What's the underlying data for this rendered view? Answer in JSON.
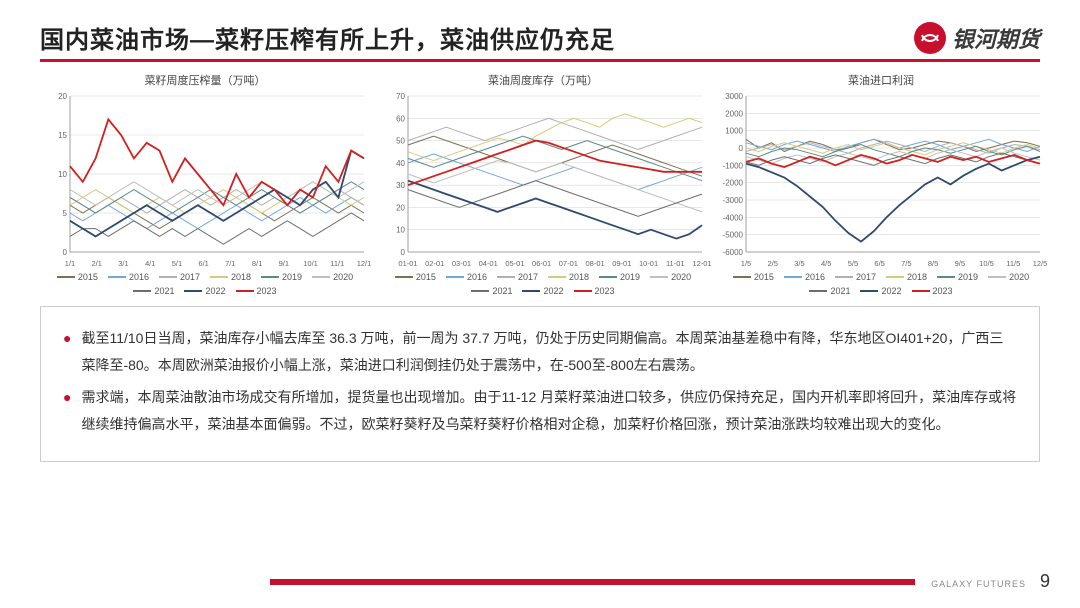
{
  "header": {
    "title": "国内菜油市场—菜籽压榨有所上升，菜油供应仍充足",
    "logo_text": "银河期货"
  },
  "colors": {
    "accent": "#c8102e",
    "y2015": "#7f7053",
    "y2016": "#6fa8dc",
    "y2017": "#b0b0b0",
    "y2018": "#d9c97a",
    "y2019": "#5a8a8a",
    "y2020": "#bfbfbf",
    "y2021": "#6e6e6e",
    "y2022": "#2f4a6f",
    "y2023": "#d21f1f",
    "grid": "#d0d0d0",
    "bg": "#ffffff"
  },
  "charts": [
    {
      "title": "菜籽周度压榨量（万吨）",
      "ylim": [
        0,
        20
      ],
      "ytick_step": 5,
      "xticks": [
        "1/1",
        "2/1",
        "3/1",
        "4/1",
        "5/1",
        "6/1",
        "7/1",
        "8/1",
        "9/1",
        "10/1",
        "11/1",
        "12/1"
      ],
      "label_fontsize": 8,
      "series": {
        "2015": [
          6,
          5,
          6,
          7,
          6,
          5,
          4,
          3,
          4,
          5,
          6,
          5,
          4,
          5,
          6,
          5,
          4,
          5,
          6,
          7,
          6,
          5,
          6,
          5
        ],
        "2016": [
          5,
          4,
          5,
          6,
          5,
          4,
          3,
          4,
          5,
          4,
          3,
          4,
          5,
          6,
          5,
          4,
          5,
          6,
          7,
          6,
          5,
          6,
          7,
          6
        ],
        "2017": [
          7,
          6,
          5,
          6,
          7,
          6,
          5,
          6,
          7,
          8,
          7,
          6,
          7,
          8,
          7,
          6,
          7,
          6,
          5,
          6,
          7,
          8,
          7,
          6
        ],
        "2018": [
          6,
          7,
          8,
          7,
          6,
          5,
          6,
          7,
          6,
          5,
          6,
          7,
          8,
          7,
          6,
          5,
          6,
          7,
          8,
          9,
          8,
          7,
          6,
          7
        ],
        "2019": [
          7,
          6,
          5,
          6,
          7,
          8,
          7,
          6,
          5,
          6,
          7,
          8,
          7,
          6,
          7,
          8,
          7,
          6,
          5,
          6,
          7,
          8,
          9,
          8
        ],
        "2020": [
          8,
          7,
          6,
          7,
          8,
          9,
          8,
          7,
          6,
          7,
          8,
          7,
          6,
          7,
          8,
          9,
          8,
          7,
          8,
          9,
          8,
          7,
          8,
          9
        ],
        "2021": [
          2,
          3,
          3,
          2,
          3,
          4,
          3,
          2,
          3,
          2,
          3,
          2,
          1,
          2,
          3,
          2,
          3,
          4,
          3,
          2,
          3,
          4,
          5,
          4
        ],
        "2022": [
          4,
          3,
          2,
          3,
          4,
          5,
          6,
          5,
          4,
          5,
          6,
          5,
          4,
          5,
          6,
          7,
          8,
          7,
          6,
          8,
          9,
          7,
          13,
          12
        ],
        "2023": [
          11,
          9,
          12,
          17,
          15,
          12,
          14,
          13,
          9,
          12,
          10,
          8,
          6,
          10,
          7,
          9,
          8,
          6,
          8,
          7,
          11,
          9,
          13,
          12
        ]
      }
    },
    {
      "title": "菜油周度库存（万吨）",
      "ylim": [
        0,
        70
      ],
      "ytick_step": 10,
      "xticks": [
        "01-01",
        "02-01",
        "03-01",
        "04-01",
        "05-01",
        "06-01",
        "07-01",
        "08-01",
        "09-01",
        "10-01",
        "11-01",
        "12-01"
      ],
      "label_fontsize": 8,
      "series": {
        "2015": [
          48,
          50,
          52,
          50,
          48,
          46,
          44,
          42,
          40,
          38,
          36,
          38,
          40,
          42,
          44,
          46,
          48,
          46,
          44,
          42,
          40,
          38,
          36,
          34
        ],
        "2016": [
          40,
          42,
          44,
          42,
          40,
          38,
          36,
          34,
          32,
          30,
          32,
          34,
          36,
          38,
          36,
          34,
          32,
          30,
          28,
          30,
          32,
          34,
          36,
          38
        ],
        "2017": [
          50,
          52,
          54,
          56,
          54,
          52,
          50,
          52,
          54,
          56,
          58,
          60,
          58,
          56,
          54,
          52,
          50,
          48,
          46,
          48,
          50,
          52,
          54,
          56
        ],
        "2018": [
          45,
          43,
          41,
          43,
          45,
          47,
          49,
          51,
          50,
          48,
          52,
          55,
          58,
          60,
          58,
          56,
          60,
          62,
          60,
          58,
          56,
          58,
          60,
          58
        ],
        "2019": [
          42,
          40,
          38,
          40,
          42,
          44,
          46,
          48,
          50,
          52,
          50,
          48,
          46,
          48,
          50,
          48,
          46,
          44,
          42,
          40,
          38,
          36,
          34,
          32
        ],
        "2020": [
          35,
          33,
          31,
          33,
          35,
          37,
          39,
          41,
          40,
          38,
          36,
          38,
          40,
          38,
          36,
          34,
          32,
          30,
          28,
          26,
          24,
          22,
          20,
          18
        ],
        "2021": [
          28,
          26,
          24,
          22,
          20,
          22,
          24,
          26,
          28,
          30,
          32,
          30,
          28,
          26,
          24,
          22,
          20,
          18,
          16,
          18,
          20,
          22,
          24,
          26
        ],
        "2022": [
          32,
          30,
          28,
          26,
          24,
          22,
          20,
          18,
          20,
          22,
          24,
          22,
          20,
          18,
          16,
          14,
          12,
          10,
          8,
          10,
          8,
          6,
          8,
          12
        ],
        "2023": [
          30,
          32,
          34,
          36,
          38,
          40,
          42,
          44,
          46,
          48,
          50,
          49,
          47,
          45,
          43,
          41,
          40,
          39,
          38,
          37,
          36,
          36,
          36,
          36
        ]
      }
    },
    {
      "title": "菜油进口利润",
      "ylim": [
        -6000,
        3000
      ],
      "ytick_step": 1000,
      "xticks": [
        "1/5",
        "2/5",
        "3/5",
        "4/5",
        "5/5",
        "6/5",
        "7/5",
        "8/5",
        "9/5",
        "10/5",
        "11/5",
        "12/5"
      ],
      "label_fontsize": 8,
      "series": {
        "2015": [
          500,
          0,
          300,
          -200,
          100,
          400,
          200,
          -100,
          0,
          300,
          500,
          200,
          -100,
          0,
          200,
          400,
          300,
          100,
          -200,
          0,
          200,
          400,
          300,
          100
        ],
        "2016": [
          300,
          100,
          -100,
          200,
          400,
          200,
          0,
          -200,
          100,
          300,
          500,
          300,
          0,
          200,
          400,
          200,
          -100,
          100,
          300,
          500,
          200,
          0,
          -200,
          100
        ],
        "2017": [
          -200,
          0,
          200,
          -100,
          100,
          300,
          100,
          -100,
          -300,
          0,
          200,
          400,
          200,
          0,
          -200,
          100,
          300,
          100,
          -100,
          -300,
          0,
          200,
          100,
          -100
        ],
        "2018": [
          0,
          -200,
          100,
          300,
          100,
          -100,
          -300,
          0,
          200,
          -100,
          100,
          300,
          0,
          -200,
          -400,
          -100,
          100,
          300,
          100,
          -100,
          -300,
          0,
          200,
          0
        ],
        "2019": [
          -300,
          -500,
          -200,
          0,
          -100,
          -300,
          -500,
          -200,
          0,
          200,
          -100,
          -300,
          -500,
          -200,
          0,
          -100,
          -300,
          -100,
          100,
          -200,
          -400,
          -100,
          100,
          -200
        ],
        "2020": [
          -500,
          -700,
          -900,
          -600,
          -400,
          -600,
          -800,
          -500,
          -300,
          -500,
          -700,
          -400,
          -200,
          -400,
          -600,
          -300,
          -100,
          -300,
          -500,
          -200,
          0,
          -300,
          -500,
          -700
        ],
        "2021": [
          -800,
          -1000,
          -700,
          -500,
          -700,
          -900,
          -600,
          -400,
          -600,
          -800,
          -1000,
          -700,
          -500,
          -700,
          -900,
          -600,
          -400,
          -600,
          -800,
          -500,
          -300,
          -500,
          -700,
          -900
        ],
        "2022": [
          -900,
          -1100,
          -1400,
          -1700,
          -2200,
          -2800,
          -3400,
          -4200,
          -4900,
          -5400,
          -4800,
          -4000,
          -3300,
          -2700,
          -2100,
          -1700,
          -2100,
          -1600,
          -1200,
          -900,
          -1300,
          -1000,
          -700,
          -500
        ],
        "2023": [
          -800,
          -600,
          -900,
          -1100,
          -800,
          -500,
          -700,
          -1000,
          -700,
          -400,
          -600,
          -900,
          -700,
          -400,
          -600,
          -800,
          -500,
          -700,
          -500,
          -800,
          -600,
          -400,
          -700,
          -900
        ]
      }
    }
  ],
  "legend_years": [
    "2015",
    "2016",
    "2017",
    "2018",
    "2019",
    "2020",
    "2021",
    "2022",
    "2023"
  ],
  "bullets": [
    "截至11/10日当周，菜油库存小幅去库至 36.3 万吨，前一周为 37.7 万吨，仍处于历史同期偏高。本周菜油基差稳中有降，华东地区OI401+20，广西三菜降至-80。本周欧洲菜油报价小幅上涨，菜油进口利润倒挂仍处于震荡中，在-500至-800左右震荡。",
    "需求端，本周菜油散油市场成交有所增加，提货量也出现增加。由于11-12 月菜籽菜油进口较多，供应仍保持充足，国内开机率即将回升，菜油库存或将继续维持偏高水平，菜油基本面偏弱。不过，欧菜籽葵籽及乌菜籽葵籽价格相对企稳，加菜籽价格回涨，预计菜油涨跌均较难出现大的变化。"
  ],
  "footer": {
    "brand": "GALAXY FUTURES",
    "page": "9"
  }
}
